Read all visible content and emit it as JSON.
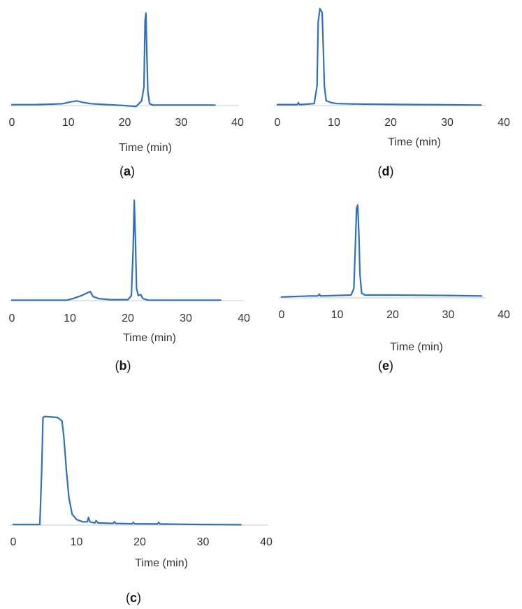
{
  "chart_data": [
    {
      "panel": "a",
      "type": "line",
      "panel_label": "a",
      "xlabel": "Time (min)",
      "xlim": [
        0,
        40
      ],
      "x_ticks": [
        0,
        10,
        20,
        30,
        40
      ],
      "series": [
        {
          "color": "#2f6fbd",
          "points": [
            [
              0,
              0.01
            ],
            [
              4,
              0.01
            ],
            [
              7,
              0.015
            ],
            [
              9,
              0.02
            ],
            [
              10.5,
              0.04
            ],
            [
              11.5,
              0.05
            ],
            [
              12.5,
              0.035
            ],
            [
              14,
              0.02
            ],
            [
              17,
              0.01
            ],
            [
              20,
              0.0
            ],
            [
              22,
              -0.01
            ],
            [
              22.5,
              0.02
            ],
            [
              23,
              0.05
            ],
            [
              23.4,
              0.2
            ],
            [
              23.6,
              0.9
            ],
            [
              23.75,
              0.98
            ],
            [
              23.9,
              0.6
            ],
            [
              24.1,
              0.15
            ],
            [
              24.4,
              0.02
            ],
            [
              25,
              0.005
            ],
            [
              30,
              0.005
            ],
            [
              36,
              0.005
            ]
          ]
        }
      ]
    },
    {
      "panel": "b",
      "type": "line",
      "panel_label": "b",
      "xlabel": "Time (min)",
      "xlim": [
        0,
        40
      ],
      "x_ticks": [
        0,
        10,
        20,
        30,
        40
      ],
      "series": [
        {
          "color": "#2f6fbd",
          "points": [
            [
              0,
              0.005
            ],
            [
              9.5,
              0.005
            ],
            [
              10.5,
              0.02
            ],
            [
              12,
              0.05
            ],
            [
              13.5,
              0.09
            ],
            [
              14,
              0.04
            ],
            [
              15,
              0.02
            ],
            [
              17,
              0.01
            ],
            [
              20,
              0.01
            ],
            [
              20.6,
              0.05
            ],
            [
              20.9,
              0.5
            ],
            [
              21.1,
              0.99
            ],
            [
              21.3,
              0.6
            ],
            [
              21.5,
              0.12
            ],
            [
              21.8,
              0.05
            ],
            [
              22.2,
              0.06
            ],
            [
              22.6,
              0.02
            ],
            [
              23.5,
              0.005
            ],
            [
              30,
              0.005
            ],
            [
              36,
              0.005
            ]
          ]
        }
      ]
    },
    {
      "panel": "c",
      "type": "line",
      "panel_label": "c",
      "xlabel": "Time (min)",
      "xlim": [
        0,
        40
      ],
      "x_ticks": [
        0,
        10,
        20,
        30,
        40
      ],
      "series": [
        {
          "color": "#2f6fbd",
          "points": [
            [
              0,
              0.005
            ],
            [
              4.2,
              0.005
            ],
            [
              4.5,
              0.5
            ],
            [
              4.7,
              0.98
            ],
            [
              5,
              0.99
            ],
            [
              6,
              0.985
            ],
            [
              7,
              0.98
            ],
            [
              7.7,
              0.95
            ],
            [
              8,
              0.8
            ],
            [
              8.4,
              0.5
            ],
            [
              8.8,
              0.25
            ],
            [
              9.3,
              0.1
            ],
            [
              10,
              0.05
            ],
            [
              11,
              0.03
            ],
            [
              11.7,
              0.03
            ],
            [
              11.9,
              0.07
            ],
            [
              12.1,
              0.03
            ],
            [
              12.9,
              0.02
            ],
            [
              13.1,
              0.04
            ],
            [
              13.4,
              0.02
            ],
            [
              15.8,
              0.015
            ],
            [
              16,
              0.03
            ],
            [
              16.2,
              0.015
            ],
            [
              18.8,
              0.012
            ],
            [
              19,
              0.025
            ],
            [
              19.2,
              0.012
            ],
            [
              22.8,
              0.01
            ],
            [
              23,
              0.025
            ],
            [
              23.2,
              0.01
            ],
            [
              30,
              0.006
            ],
            [
              36,
              0.003
            ]
          ]
        }
      ]
    },
    {
      "panel": "d",
      "type": "line",
      "panel_label": "d",
      "xlabel": "Time (min)",
      "xlim": [
        0,
        40
      ],
      "x_ticks": [
        0,
        10,
        20,
        30,
        40
      ],
      "series": [
        {
          "color": "#2f6fbd",
          "points": [
            [
              0,
              0.01
            ],
            [
              3.5,
              0.01
            ],
            [
              3.7,
              0.03
            ],
            [
              3.9,
              0.01
            ],
            [
              6.5,
              0.02
            ],
            [
              7,
              0.2
            ],
            [
              7.2,
              0.85
            ],
            [
              7.5,
              0.99
            ],
            [
              7.9,
              0.95
            ],
            [
              8.1,
              0.6
            ],
            [
              8.3,
              0.2
            ],
            [
              8.6,
              0.05
            ],
            [
              9.5,
              0.03
            ],
            [
              10.5,
              0.02
            ],
            [
              15,
              0.015
            ],
            [
              25,
              0.01
            ],
            [
              36,
              0.005
            ]
          ]
        }
      ]
    },
    {
      "panel": "e",
      "type": "line",
      "panel_label": "e",
      "xlabel": "Time (min)",
      "xlim": [
        0,
        40
      ],
      "x_ticks": [
        0,
        10,
        20,
        30,
        40
      ],
      "series": [
        {
          "color": "#2f6fbd",
          "points": [
            [
              0,
              0.01
            ],
            [
              5,
              0.02
            ],
            [
              6.5,
              0.02
            ],
            [
              6.8,
              0.04
            ],
            [
              7,
              0.02
            ],
            [
              12.5,
              0.03
            ],
            [
              13,
              0.1
            ],
            [
              13.3,
              0.6
            ],
            [
              13.5,
              0.96
            ],
            [
              13.7,
              0.99
            ],
            [
              13.9,
              0.7
            ],
            [
              14.1,
              0.25
            ],
            [
              14.4,
              0.05
            ],
            [
              15,
              0.03
            ],
            [
              20,
              0.03
            ],
            [
              30,
              0.025
            ],
            [
              36,
              0.02
            ]
          ]
        }
      ]
    }
  ]
}
